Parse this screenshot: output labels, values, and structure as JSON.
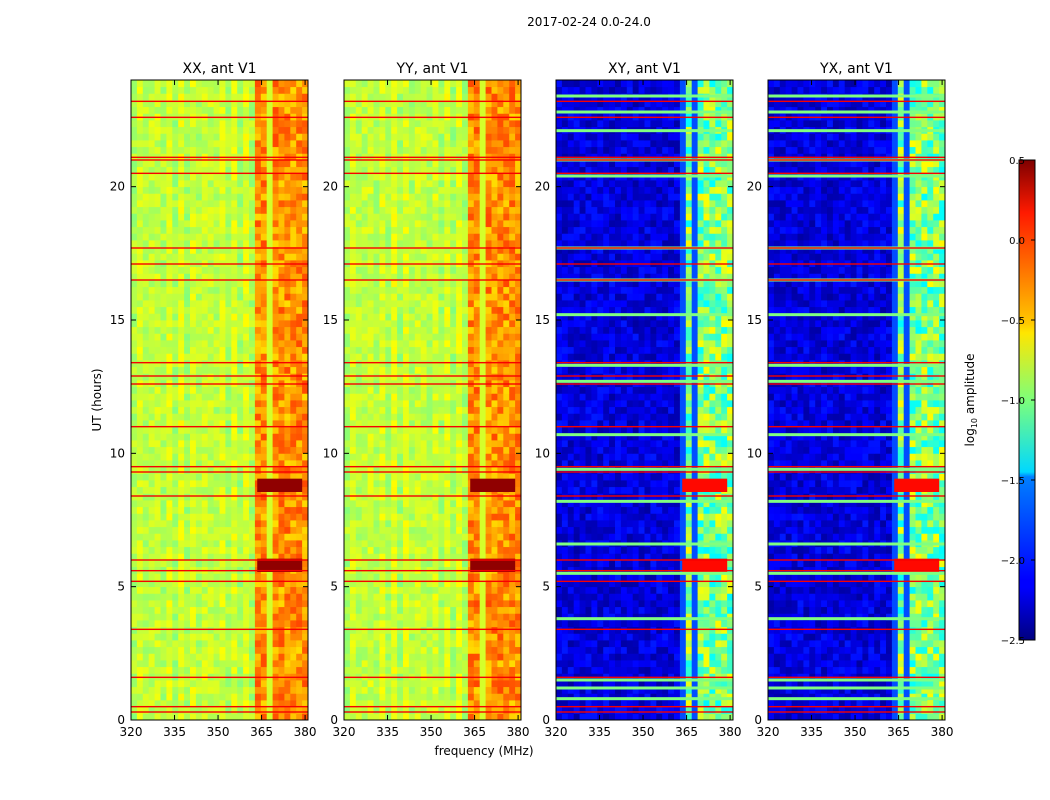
{
  "chart_data": {
    "type": "heatmap",
    "title": "2017-02-24 0.0-24.0",
    "xlabel": "frequency (MHz)",
    "ylabel": "UT (hours)",
    "xlim": [
      320,
      381
    ],
    "ylim": [
      0,
      24
    ],
    "xticks": [
      "320",
      "335",
      "350",
      "365",
      "380"
    ],
    "xtick_values": [
      320,
      335,
      350,
      365,
      380
    ],
    "yticks": [
      "0",
      "5",
      "10",
      "15",
      "20"
    ],
    "ytick_values": [
      0,
      5,
      10,
      15,
      20
    ],
    "colormap": "jet",
    "colorbar": {
      "label_prefix": "log",
      "label_sub": "10",
      "label_suffix": " amplitude",
      "range": [
        -2.5,
        0.5
      ],
      "ticks": [
        "0.5",
        "0.0",
        "−0.5",
        "−1.0",
        "−1.5",
        "−2.0",
        "−2.5"
      ],
      "tick_values": [
        0.5,
        0.0,
        -0.5,
        -1.0,
        -1.5,
        -2.0,
        -2.5
      ]
    },
    "panels": [
      {
        "title": "XX, ant V1",
        "kind": "parallel",
        "base_level": -0.8,
        "band_level": -0.3
      },
      {
        "title": "YY, ant V1",
        "kind": "parallel",
        "base_level": -0.8,
        "band_level": -0.3
      },
      {
        "title": "XY, ant V1",
        "kind": "cross",
        "base_level": -2.4,
        "band_level": -1.0
      },
      {
        "title": "YX, ant V1",
        "kind": "cross",
        "base_level": -2.4,
        "band_level": -1.0
      }
    ],
    "bright_band_freq_MHz": [
      363,
      381
    ],
    "strong_rows_UT": [
      5.8,
      8.8
    ],
    "flagged_rows_UT": [
      0.3,
      0.5,
      1.6,
      3.4,
      5.2,
      5.6,
      6.0,
      8.4,
      9.3,
      9.5,
      11.0,
      12.6,
      12.9,
      13.4,
      16.5,
      17.1,
      17.7,
      20.5,
      21.0,
      21.1,
      22.6,
      23.2
    ],
    "cross_bright_rows_UT": [
      0.8,
      1.2,
      1.5,
      3.8,
      5.5,
      6.6,
      8.2,
      9.4,
      10.7,
      12.7,
      13.3,
      15.2,
      16.5,
      17.7,
      20.4,
      21.0,
      22.1,
      22.8,
      23.4
    ]
  }
}
